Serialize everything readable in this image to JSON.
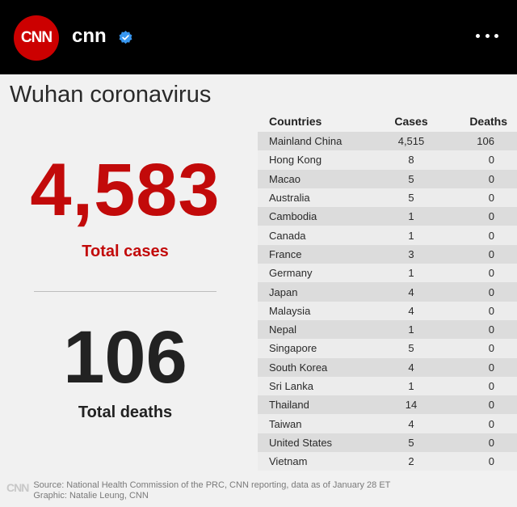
{
  "header": {
    "avatar_text": "CNN",
    "account_name": "cnn",
    "verified_icon": "verified-badge-icon",
    "more_icon": "more-options-icon"
  },
  "graphic": {
    "title": "Wuhan coronavirus",
    "total_cases_value": "4,583",
    "total_cases_label": "Total cases",
    "total_deaths_value": "106",
    "total_deaths_label": "Total deaths"
  },
  "table": {
    "headers": [
      "Countries",
      "Cases",
      "Deaths"
    ],
    "rows": [
      [
        "Mainland China",
        "4,515",
        "106"
      ],
      [
        "Hong Kong",
        "8",
        "0"
      ],
      [
        "Macao",
        "5",
        "0"
      ],
      [
        "Australia",
        "5",
        "0"
      ],
      [
        "Cambodia",
        "1",
        "0"
      ],
      [
        "Canada",
        "1",
        "0"
      ],
      [
        "France",
        "3",
        "0"
      ],
      [
        "Germany",
        "1",
        "0"
      ],
      [
        "Japan",
        "4",
        "0"
      ],
      [
        "Malaysia",
        "4",
        "0"
      ],
      [
        "Nepal",
        "1",
        "0"
      ],
      [
        "Singapore",
        "5",
        "0"
      ],
      [
        "South Korea",
        "4",
        "0"
      ],
      [
        "Sri Lanka",
        "1",
        "0"
      ],
      [
        "Thailand",
        "14",
        "0"
      ],
      [
        "Taiwan",
        "4",
        "0"
      ],
      [
        "United States",
        "5",
        "0"
      ],
      [
        "Vietnam",
        "2",
        "0"
      ]
    ]
  },
  "footer": {
    "logo_text": "CNN",
    "source": "Source: National Health Commission of the PRC, CNN reporting, data as of January 28 ET",
    "graphic_credit": "Graphic: Natalie Leung, CNN"
  },
  "colors": {
    "brand_red": "#cc0000",
    "cases_red": "#c20a0a",
    "verified_blue": "#3897f0"
  }
}
